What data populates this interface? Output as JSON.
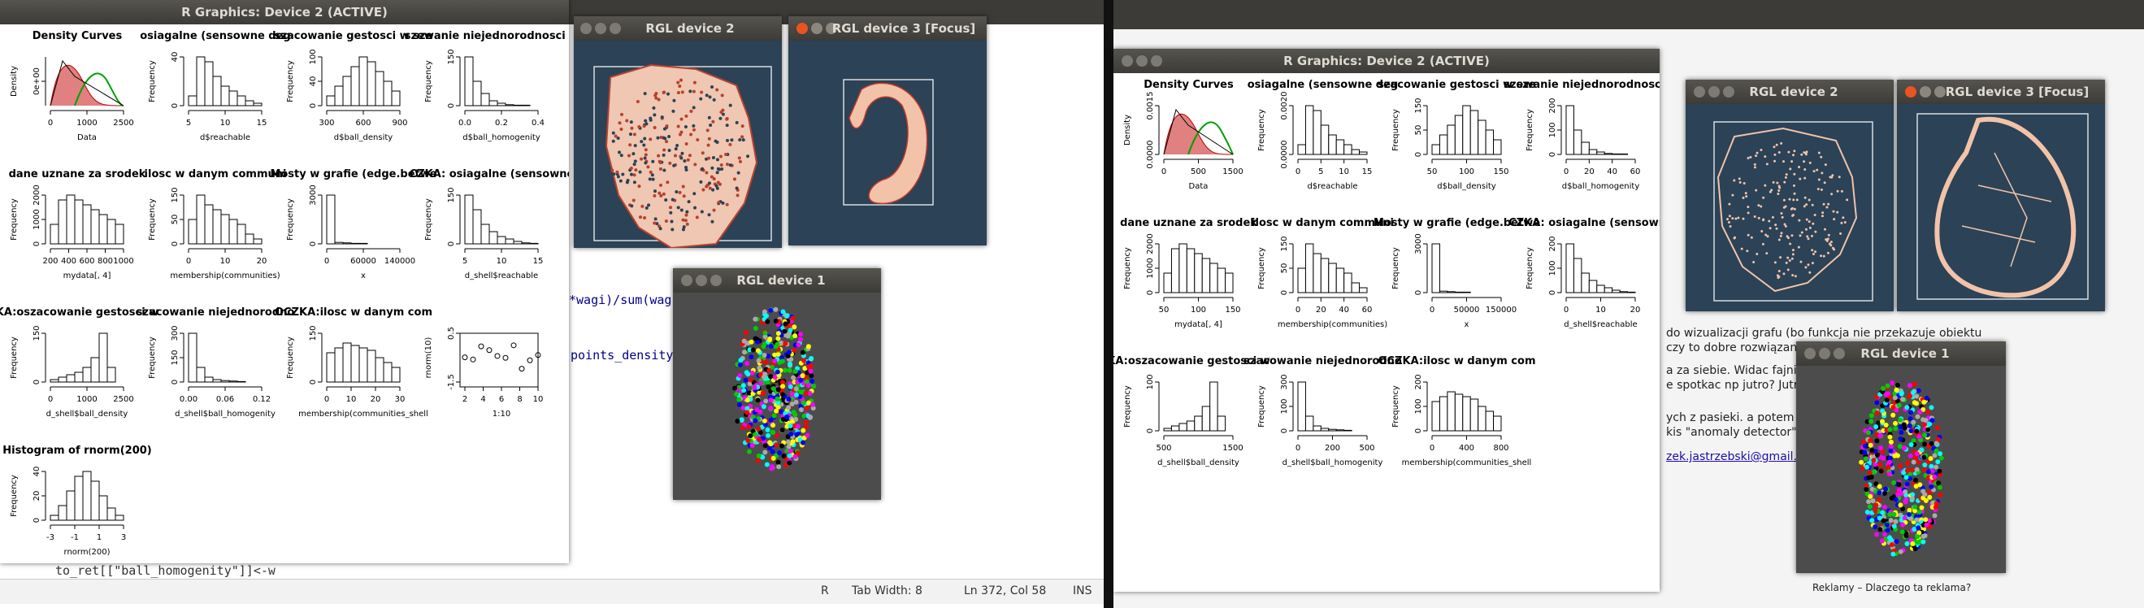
{
  "left_desktop": {
    "window_title": "R Graphics: Device 2 (ACTIVE)",
    "code_fragments": [
      "*wagi)/sum(wag",
      "points_density",
      "to_ret[[\"ball_homogenity\"]]<-w"
    ],
    "status_bar": {
      "mode": "R",
      "tab_width": "Tab Width:  8",
      "cursor": "Ln 372, Col 58",
      "insert": "INS"
    },
    "rgl2_title": "RGL device 2",
    "rgl3_title": "RGL device 3 [Focus]",
    "rgl1_title": "RGL device 1",
    "plots": [
      {
        "title": "Density Curves",
        "xlab": "Data",
        "ylab": "Density",
        "xticks": [
          "0",
          "1000",
          "2500"
        ],
        "yticks": [
          "0e+00"
        ]
      },
      {
        "title": "osiagalne  (sensowne deg",
        "xlab": "d$reachable",
        "ylab": "Frequency",
        "xticks": [
          "5",
          "10",
          "15"
        ],
        "yticks": [
          "0",
          "40"
        ]
      },
      {
        "title": "szacowanie gestosci w sze",
        "xlab": "d$ball_density",
        "ylab": "Frequency",
        "xticks": [
          "300",
          "600",
          "900"
        ],
        "yticks": [
          "0",
          "40",
          "100"
        ]
      },
      {
        "title": "szewanie niejednorodnosci w",
        "xlab": "d$ball_homogenity",
        "ylab": "Frequency",
        "xticks": [
          "0.0",
          "0.2",
          "0.4"
        ],
        "yticks": [
          "0",
          "150"
        ]
      },
      {
        "title": "dane uznane za srodek",
        "xlab": "mydata[, 4]",
        "ylab": "Frequency",
        "xticks": [
          "200",
          "400",
          "600",
          "800",
          "1000"
        ],
        "yticks": [
          "0",
          "1000",
          "2000"
        ]
      },
      {
        "title": "ilosc w danym communi",
        "xlab": "membership(communities)",
        "ylab": "Frequency",
        "xticks": [
          "0",
          "10",
          "20"
        ],
        "yticks": [
          "0",
          "50",
          "150"
        ]
      },
      {
        "title": "Mosty w grafie (edge.betwe",
        "xlab": "x",
        "ylab": "Frequency",
        "xticks": [
          "0",
          "60000",
          "140000"
        ],
        "yticks": [
          "0",
          "3000"
        ]
      },
      {
        "title": "CZKA: osiagalne (sensowne",
        "xlab": "d_shell$reachable",
        "ylab": "Frequency",
        "xticks": [
          "5",
          "10",
          "15"
        ],
        "yticks": [
          "0",
          "150"
        ]
      },
      {
        "title": "KA:oszacowanie gestosci w",
        "xlab": "d_shell$ball_density",
        "ylab": "Frequency",
        "xticks": [
          "0",
          "1000",
          "2500"
        ],
        "yticks": [
          "0",
          "150"
        ]
      },
      {
        "title": "szacowanie niejednorodno",
        "xlab": "d_shell$ball_homogenity",
        "ylab": "Frequency",
        "xticks": [
          "0.00",
          "0.06",
          "0.12"
        ],
        "yticks": [
          "0",
          "150",
          "300"
        ]
      },
      {
        "title": "OCZKA:ilosc w danym com",
        "xlab": "membership(communities_shell",
        "ylab": "Frequency",
        "xticks": [
          "0",
          "10",
          "20",
          "30"
        ],
        "yticks": [
          "0",
          "150"
        ]
      },
      {
        "title": "",
        "xlab": "1:10",
        "ylab": "rnorm(10)",
        "xticks": [
          "2",
          "4",
          "6",
          "8",
          "10"
        ],
        "yticks": [
          "-1.5",
          "0.5"
        ]
      },
      {
        "title": "Histogram of rnorm(200)",
        "xlab": "rnorm(200)",
        "ylab": "Frequency",
        "xticks": [
          "-3",
          "-1",
          "1",
          "3"
        ],
        "yticks": [
          "0",
          "20",
          "40"
        ]
      }
    ]
  },
  "right_desktop": {
    "window_title": "R Graphics: Device 2 (ACTIVE)",
    "rgl2_title": "RGL device 2",
    "rgl3_title": "RGL device 3 [Focus]",
    "rgl1_title": "RGL device 1",
    "browser_text": [
      "do wizualizacji grafu (bo funkcja nie przekazuje obiektu",
      "czy to dobre rozwiązanie.",
      "a za siebie. Widac fajnie to ze",
      "e spotkac np jutro? Jutro jeste",
      "ych z pasieki. a potem jesli P",
      "kis \"anomaly detector\"?",
      "zek.jastrzebski@gmail.com>",
      "Reklamy – Dlaczego ta reklama?"
    ],
    "plots": [
      {
        "title": "Density Curves",
        "xlab": "Data",
        "ylab": "Density",
        "xticks": [
          "0",
          "500",
          "1500"
        ],
        "yticks": [
          "0.0000",
          "0.0015"
        ]
      },
      {
        "title": "osiagalne  (sensowne deg",
        "xlab": "d$reachable",
        "ylab": "Frequency",
        "xticks": [
          "0",
          "5",
          "10",
          "15"
        ],
        "yticks": [
          "0.0000",
          "0.0020"
        ]
      },
      {
        "title": "szacowanie gestosci w sze",
        "xlab": "d$ball_density",
        "ylab": "Frequency",
        "xticks": [
          "50",
          "100",
          "150"
        ],
        "yticks": [
          "0",
          "50",
          "150"
        ]
      },
      {
        "title": "szewanie niejednorodnosci w",
        "xlab": "d$ball_homogenity",
        "ylab": "Frequency",
        "xticks": [
          "0",
          "20",
          "40",
          "60"
        ],
        "yticks": [
          "0",
          "100",
          "200"
        ]
      },
      {
        "title": "dane uznane za srodek",
        "xlab": "mydata[, 4]",
        "ylab": "Frequency",
        "xticks": [
          "50",
          "100",
          "150"
        ],
        "yticks": [
          "0",
          "1000",
          "2000"
        ]
      },
      {
        "title": "ilosc w danym communi",
        "xlab": "membership(communities)",
        "ylab": "Frequency",
        "xticks": [
          "0",
          "20",
          "40",
          "60"
        ],
        "yticks": [
          "0",
          "50",
          "150"
        ]
      },
      {
        "title": "Mosty w grafie (edge.betwe",
        "xlab": "x",
        "ylab": "Frequency",
        "xticks": [
          "0",
          "50000",
          "150000"
        ],
        "yticks": [
          "0",
          "3000"
        ]
      },
      {
        "title": "CZKA: osiagalne (sensowne",
        "xlab": "d_shell$reachable",
        "ylab": "Frequency",
        "xticks": [
          "0",
          "10",
          "20"
        ],
        "yticks": [
          "0",
          "100",
          "200"
        ]
      },
      {
        "title": "KA:oszacowanie gestosci w",
        "xlab": "d_shell$ball_density",
        "ylab": "Frequency",
        "xticks": [
          "500",
          "1500"
        ],
        "yticks": [
          "0",
          "100"
        ]
      },
      {
        "title": "szacowanie niejednorodno",
        "xlab": "d_shell$ball_homogenity",
        "ylab": "Frequency",
        "xticks": [
          "0",
          "200",
          "500"
        ],
        "yticks": [
          "0",
          "100",
          "300"
        ]
      },
      {
        "title": "OCZKA:ilosc w danym com",
        "xlab": "membership(communities_shell",
        "ylab": "Frequency",
        "xticks": [
          "0",
          "400",
          "800"
        ],
        "yticks": [
          "0",
          "100",
          "200"
        ]
      }
    ]
  },
  "colors": {
    "rgl_bg": "#2b4257",
    "rgl1_bg": "#4c4c4c",
    "titlebar": "#3c3b37",
    "close_active": "#e95420",
    "point_fill": "#f2c3a8",
    "point_edge": "#c0392b"
  }
}
